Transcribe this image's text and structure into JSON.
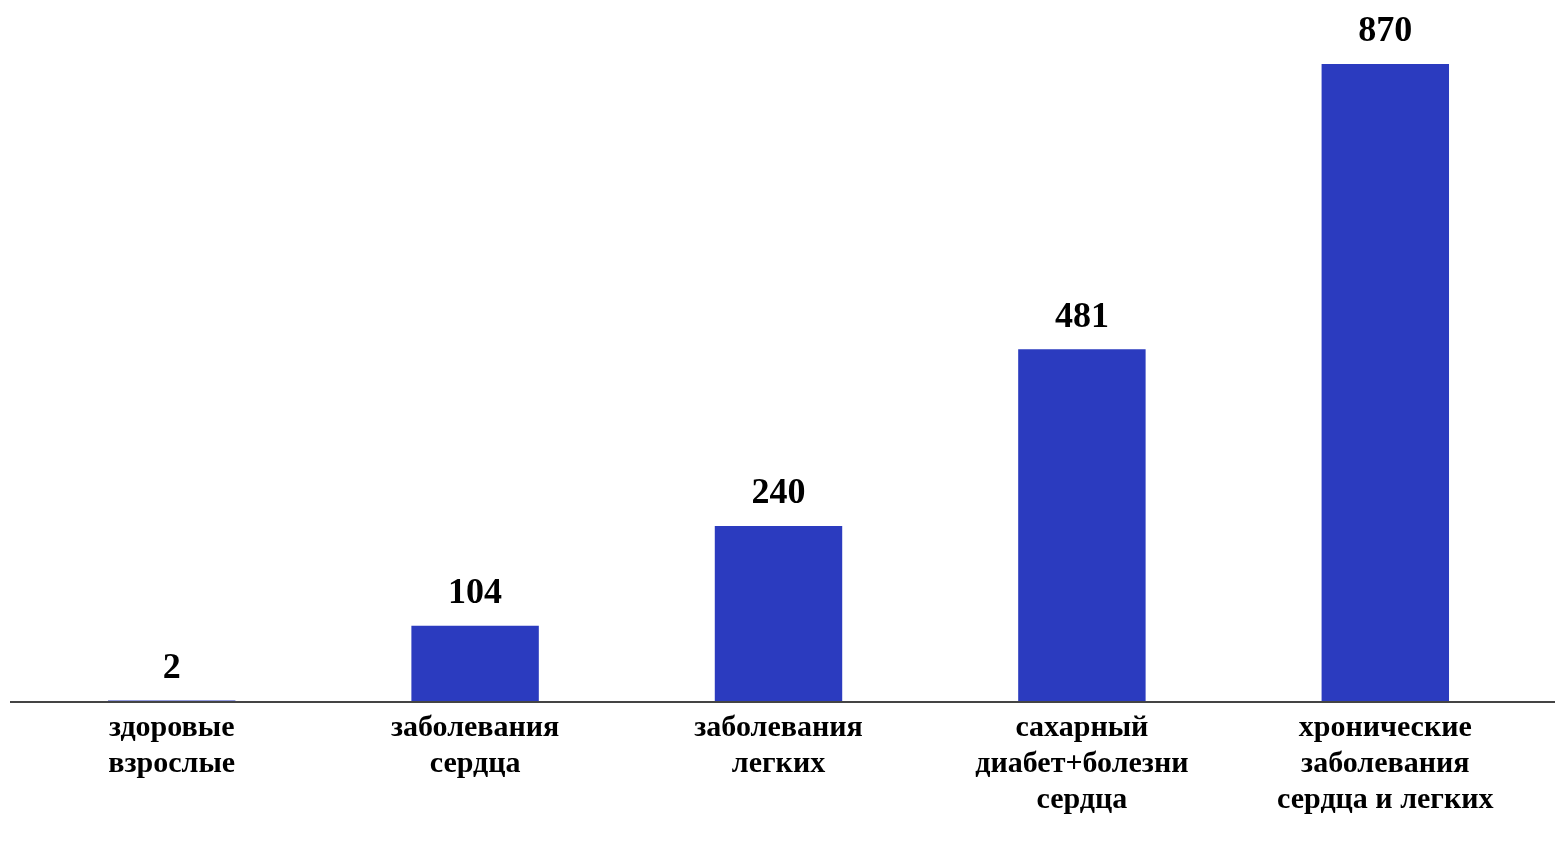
{
  "chart_data": {
    "type": "bar",
    "categories": [
      "здоровые взрослые",
      "заболевания сердца",
      "заболевания легких",
      "сахарный диабет+болезни сердца",
      "хронические заболевания сердца и легких"
    ],
    "values": [
      2,
      104,
      240,
      481,
      870
    ],
    "color": "#2b3bbf",
    "data_labels": true,
    "grid": false,
    "legend": false
  }
}
